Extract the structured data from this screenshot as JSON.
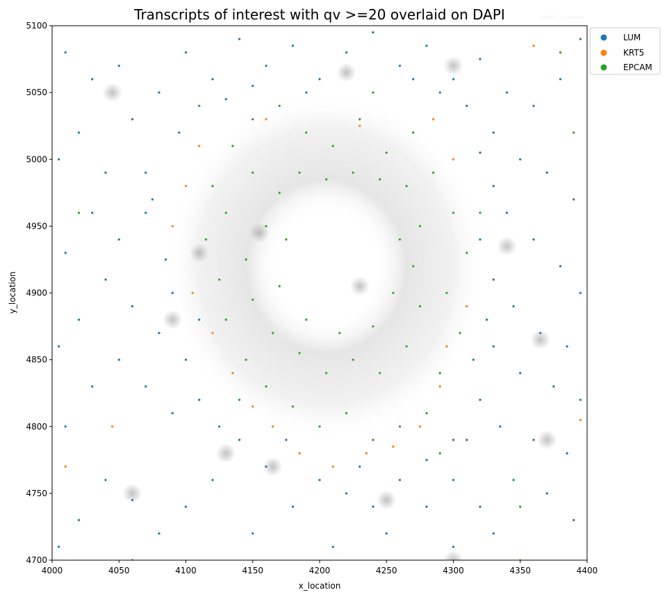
{
  "chart_data": {
    "type": "scatter",
    "title": "Transcripts of interest with qv >=20 overlaid on DAPI",
    "watermark": "20230111 sooheelee",
    "xlabel": "x_location",
    "ylabel": "y_location",
    "xlim": [
      4000,
      4400
    ],
    "ylim": [
      4700,
      5100
    ],
    "xticks": [
      4000,
      4050,
      4100,
      4150,
      4200,
      4250,
      4300,
      4350,
      4400
    ],
    "yticks": [
      4700,
      4750,
      4800,
      4850,
      4900,
      4950,
      5000,
      5050,
      5100
    ],
    "grid": false,
    "legend_position": "outside-top-right",
    "background": "DAPI grayscale image",
    "series": [
      {
        "name": "LUM",
        "color": "#1f77b4",
        "points": [
          [
            4010,
            5080
          ],
          [
            4030,
            5060
          ],
          [
            4050,
            5070
          ],
          [
            4020,
            5020
          ],
          [
            4005,
            5000
          ],
          [
            4040,
            4990
          ],
          [
            4060,
            5030
          ],
          [
            4070,
            4990
          ],
          [
            4080,
            5050
          ],
          [
            4100,
            5080
          ],
          [
            4120,
            5060
          ],
          [
            4140,
            5090
          ],
          [
            4160,
            5070
          ],
          [
            4180,
            5085
          ],
          [
            4200,
            5060
          ],
          [
            4220,
            5080
          ],
          [
            4240,
            5095
          ],
          [
            4260,
            5070
          ],
          [
            4280,
            5085
          ],
          [
            4300,
            5060
          ],
          [
            4320,
            5075
          ],
          [
            4340,
            5050
          ],
          [
            4360,
            5040
          ],
          [
            4380,
            5060
          ],
          [
            4395,
            5090
          ],
          [
            4330,
            5020
          ],
          [
            4350,
            5000
          ],
          [
            4370,
            4990
          ],
          [
            4390,
            4970
          ],
          [
            4340,
            4960
          ],
          [
            4360,
            4940
          ],
          [
            4380,
            4920
          ],
          [
            4395,
            4900
          ],
          [
            4330,
            4910
          ],
          [
            4345,
            4890
          ],
          [
            4365,
            4870
          ],
          [
            4385,
            4860
          ],
          [
            4330,
            4860
          ],
          [
            4350,
            4840
          ],
          [
            4375,
            4830
          ],
          [
            4395,
            4820
          ],
          [
            4320,
            4820
          ],
          [
            4335,
            4800
          ],
          [
            4360,
            4790
          ],
          [
            4385,
            4780
          ],
          [
            4310,
            4790
          ],
          [
            4300,
            4760
          ],
          [
            4320,
            4740
          ],
          [
            4345,
            4760
          ],
          [
            4370,
            4750
          ],
          [
            4390,
            4730
          ],
          [
            4330,
            4720
          ],
          [
            4300,
            4710
          ],
          [
            4280,
            4740
          ],
          [
            4260,
            4760
          ],
          [
            4240,
            4740
          ],
          [
            4220,
            4750
          ],
          [
            4200,
            4760
          ],
          [
            4180,
            4740
          ],
          [
            4160,
            4770
          ],
          [
            4140,
            4790
          ],
          [
            4120,
            4760
          ],
          [
            4100,
            4740
          ],
          [
            4080,
            4720
          ],
          [
            4060,
            4745
          ],
          [
            4040,
            4760
          ],
          [
            4020,
            4730
          ],
          [
            4005,
            4710
          ],
          [
            4150,
            4720
          ],
          [
            4210,
            4710
          ],
          [
            4250,
            4720
          ],
          [
            4010,
            4800
          ],
          [
            4030,
            4830
          ],
          [
            4050,
            4850
          ],
          [
            4070,
            4830
          ],
          [
            4090,
            4810
          ],
          [
            4110,
            4820
          ],
          [
            4100,
            4850
          ],
          [
            4080,
            4870
          ],
          [
            4060,
            4890
          ],
          [
            4040,
            4910
          ],
          [
            4020,
            4880
          ],
          [
            4005,
            4860
          ],
          [
            4050,
            4940
          ],
          [
            4070,
            4960
          ],
          [
            4030,
            4960
          ],
          [
            4010,
            4930
          ],
          [
            4085,
            4925
          ],
          [
            4090,
            4900
          ],
          [
            4075,
            4970
          ],
          [
            4095,
            5020
          ],
          [
            4110,
            5040
          ],
          [
            4130,
            5045
          ],
          [
            4320,
            5005
          ],
          [
            4310,
            5040
          ],
          [
            4290,
            5050
          ],
          [
            4270,
            5060
          ],
          [
            4190,
            5050
          ],
          [
            4150,
            5055
          ],
          [
            4300,
            4790
          ],
          [
            4280,
            4775
          ],
          [
            4230,
            4770
          ],
          [
            4175,
            4790
          ],
          [
            4125,
            4800
          ],
          [
            4110,
            4880
          ],
          [
            4315,
            4850
          ],
          [
            4325,
            4880
          ],
          [
            4320,
            4940
          ],
          [
            4330,
            4980
          ]
        ]
      },
      {
        "name": "KRT5",
        "color": "#ff7f0e",
        "points": [
          [
            4110,
            5010
          ],
          [
            4100,
            4980
          ],
          [
            4090,
            4950
          ],
          [
            4105,
            4900
          ],
          [
            4120,
            4870
          ],
          [
            4135,
            4840
          ],
          [
            4150,
            4815
          ],
          [
            4165,
            4800
          ],
          [
            4185,
            4780
          ],
          [
            4210,
            4770
          ],
          [
            4235,
            4780
          ],
          [
            4255,
            4785
          ],
          [
            4275,
            4800
          ],
          [
            4290,
            4830
          ],
          [
            4295,
            4860
          ],
          [
            4310,
            4890
          ],
          [
            4300,
            5000
          ],
          [
            4285,
            5030
          ],
          [
            4230,
            5025
          ],
          [
            4160,
            5030
          ],
          [
            4045,
            4800
          ],
          [
            4010,
            4770
          ],
          [
            4350,
            4700
          ],
          [
            4395,
            4805
          ],
          [
            4360,
            5085
          ]
        ]
      },
      {
        "name": "EPCAM",
        "color": "#2ca02c",
        "points": [
          [
            4120,
            4980
          ],
          [
            4135,
            5010
          ],
          [
            4150,
            5030
          ],
          [
            4170,
            5040
          ],
          [
            4190,
            5020
          ],
          [
            4210,
            5010
          ],
          [
            4230,
            5030
          ],
          [
            4250,
            5005
          ],
          [
            4270,
            5020
          ],
          [
            4285,
            4990
          ],
          [
            4300,
            4960
          ],
          [
            4310,
            4930
          ],
          [
            4295,
            4900
          ],
          [
            4305,
            4870
          ],
          [
            4290,
            4840
          ],
          [
            4280,
            4810
          ],
          [
            4260,
            4800
          ],
          [
            4240,
            4790
          ],
          [
            4220,
            4810
          ],
          [
            4200,
            4800
          ],
          [
            4180,
            4815
          ],
          [
            4160,
            4830
          ],
          [
            4145,
            4850
          ],
          [
            4130,
            4880
          ],
          [
            4125,
            4910
          ],
          [
            4115,
            4940
          ],
          [
            4130,
            4960
          ],
          [
            4150,
            4990
          ],
          [
            4170,
            4975
          ],
          [
            4160,
            4950
          ],
          [
            4145,
            4925
          ],
          [
            4150,
            4895
          ],
          [
            4165,
            4870
          ],
          [
            4185,
            4855
          ],
          [
            4205,
            4840
          ],
          [
            4225,
            4850
          ],
          [
            4245,
            4840
          ],
          [
            4265,
            4860
          ],
          [
            4275,
            4890
          ],
          [
            4270,
            4920
          ],
          [
            4275,
            4950
          ],
          [
            4265,
            4980
          ],
          [
            4245,
            4985
          ],
          [
            4225,
            4990
          ],
          [
            4205,
            4985
          ],
          [
            4185,
            4990
          ],
          [
            4175,
            4940
          ],
          [
            4170,
            4905
          ],
          [
            4190,
            4880
          ],
          [
            4215,
            4870
          ],
          [
            4240,
            4875
          ],
          [
            4255,
            4900
          ],
          [
            4260,
            4940
          ],
          [
            4140,
            4820
          ],
          [
            4290,
            4780
          ],
          [
            4320,
            4960
          ],
          [
            4110,
            5040
          ],
          [
            4240,
            5050
          ],
          [
            4020,
            4960
          ],
          [
            4380,
            5080
          ],
          [
            4060,
            4700
          ],
          [
            4350,
            4740
          ],
          [
            4390,
            5020
          ]
        ]
      }
    ]
  }
}
